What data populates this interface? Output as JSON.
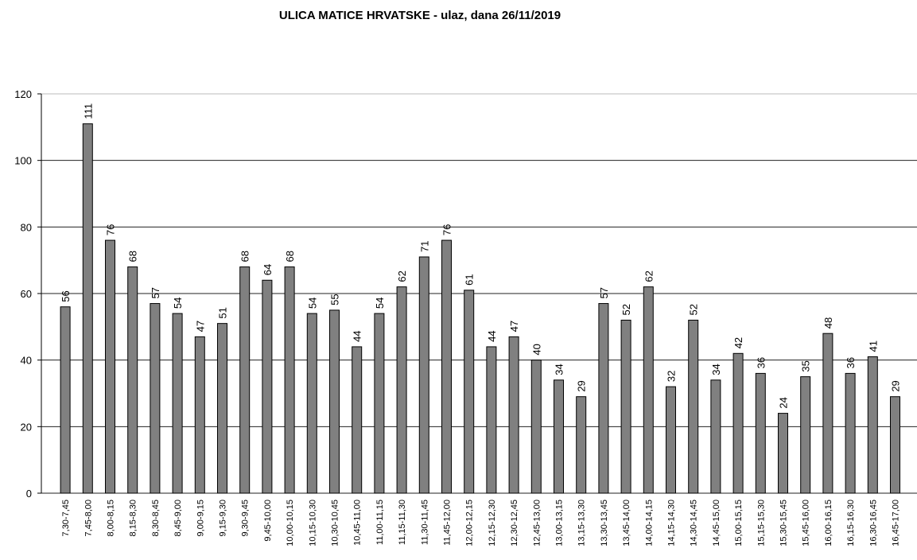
{
  "chart_data": {
    "type": "bar",
    "title": "ULICA MATICE HRVATSKE - ulaz, dana 26/11/2019",
    "categories": [
      "7,30-7,45",
      "7,45-8,00",
      "8,00-8,15",
      "8,15-8,30",
      "8,30-8,45",
      "8,45-9,00",
      "9,00-9,15",
      "9,15-9,30",
      "9,30-9,45",
      "9,45-10,00",
      "10,00-10,15",
      "10,15-10,30",
      "10,30-10,45",
      "10,45-11,00",
      "11,00-11,15",
      "11,15-11,30",
      "11,30-11,45",
      "11,45-12,00",
      "12,00-12,15",
      "12,15-12,30",
      "12,30-12,45",
      "12,45-13,00",
      "13,00-13,15",
      "13,15-13,30",
      "13,30-13,45",
      "13,45-14,00",
      "14,00-14,15",
      "14,15-14,30",
      "14,30-14,45",
      "14,45-15,00",
      "15,00-15,15",
      "15,15-15,30",
      "15,30-15,45",
      "15,45-16,00",
      "16,00-16,15",
      "16,15-16,30",
      "16,30-16,45",
      "16,45-17,00"
    ],
    "values": [
      56,
      111,
      76,
      68,
      57,
      54,
      47,
      51,
      68,
      64,
      68,
      54,
      55,
      44,
      54,
      62,
      71,
      76,
      61,
      44,
      47,
      40,
      34,
      29,
      57,
      52,
      62,
      32,
      52,
      34,
      42,
      36,
      24,
      35,
      48,
      36,
      41,
      29
    ],
    "color": "#808080",
    "ylim": [
      0,
      120
    ],
    "yticks": [
      0,
      20,
      40,
      60,
      80,
      100,
      120
    ],
    "grid": true
  }
}
